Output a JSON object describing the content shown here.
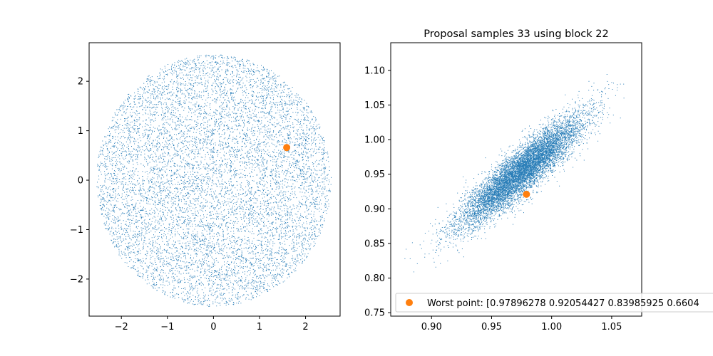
{
  "chart_data": [
    {
      "type": "scatter",
      "title": "",
      "xlabel": "",
      "ylabel": "",
      "xlim": [
        -2.7,
        2.75
      ],
      "ylim": [
        -2.75,
        2.78
      ],
      "xticks": [
        "−2",
        "−1",
        "0",
        "1",
        "2"
      ],
      "yticks": [
        "−2",
        "−1",
        "0",
        "1",
        "2"
      ],
      "grid": false,
      "series": [
        {
          "kind": "samples",
          "color": "#1f77b4",
          "distribution": "uniform disk",
          "center": [
            0,
            0
          ],
          "radius": 2.55,
          "count": 9000
        },
        {
          "kind": "highlight",
          "color": "#ff7f0e",
          "points": [
            [
              1.59,
              0.66
            ]
          ]
        }
      ]
    },
    {
      "type": "scatter",
      "title": "Proposal samples 33 using block 22",
      "xlabel": "",
      "ylabel": "",
      "xlim": [
        0.866,
        1.075
      ],
      "ylim": [
        0.745,
        1.14
      ],
      "xticks": [
        "0.90",
        "0.95",
        "1.00",
        "1.05"
      ],
      "yticks": [
        "0.75",
        "0.80",
        "0.85",
        "0.90",
        "0.95",
        "1.00",
        "1.05",
        "1.10"
      ],
      "grid": false,
      "legend_position": "lower-left",
      "legend": "Worst point: [0.97896278 0.92054427 0.83985925 0.6604",
      "series": [
        {
          "kind": "samples",
          "color": "#1f77b4",
          "distribution": "correlated ellipse",
          "center": [
            0.975,
            0.955
          ],
          "count": 9000
        },
        {
          "kind": "highlight",
          "name": "Worst point: [0.97896278 0.92054427 0.83985925 0.6604",
          "color": "#ff7f0e",
          "points": [
            [
              0.979,
              0.921
            ]
          ]
        }
      ]
    }
  ]
}
